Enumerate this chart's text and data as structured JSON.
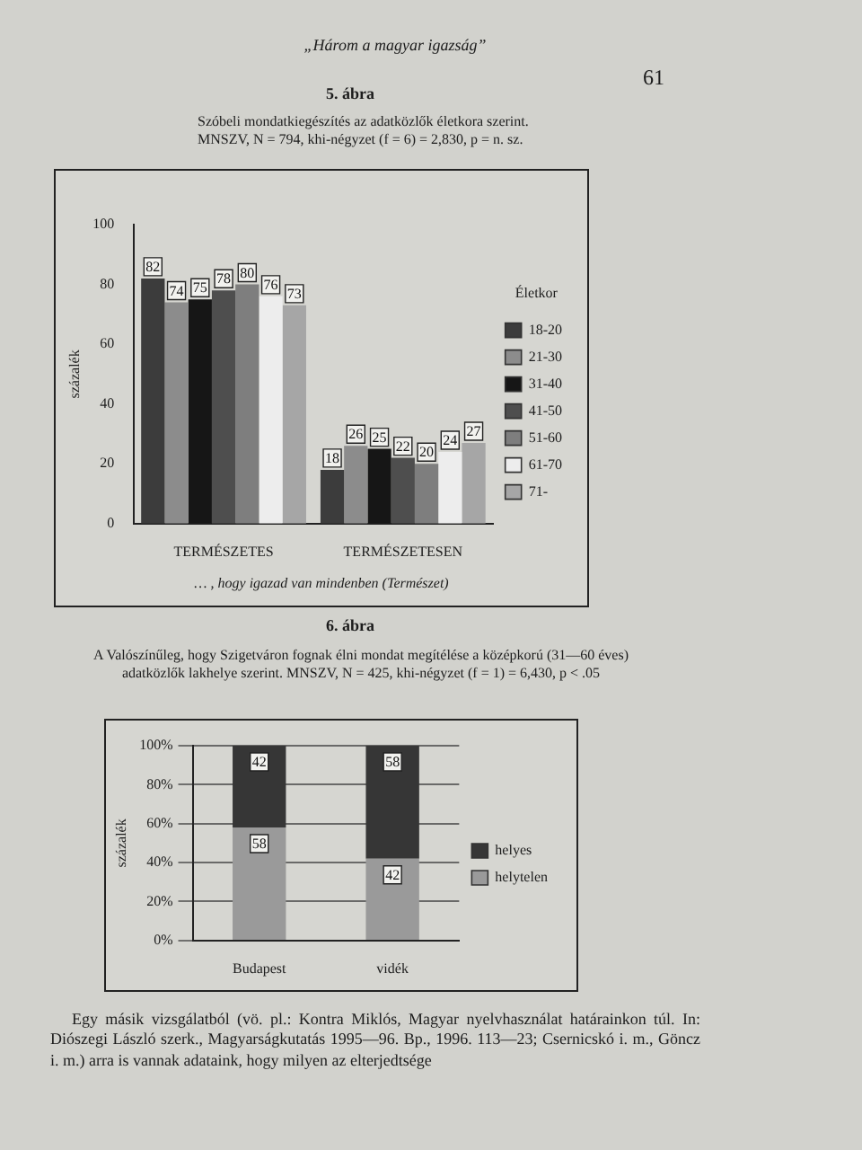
{
  "chart_data": [
    {
      "type": "bar",
      "title": "5. ábra",
      "subtitle": "Szóbeli mondatkiegészítés az adatközlők életkora szerint. MNSZV, N = 794, khi-négyzet (f = 6) = 2,830, p = n. sz.",
      "ylabel": "százalék",
      "legend_title": "Életkor",
      "categories": [
        "TERMÉSZETES",
        "TERMÉSZETESEN"
      ],
      "series": [
        {
          "name": "18-20",
          "color": "#3c3c3c",
          "values": [
            82,
            18
          ]
        },
        {
          "name": "21-30",
          "color": "#8c8c8c",
          "values": [
            74,
            26
          ]
        },
        {
          "name": "31-40",
          "color": "#161616",
          "values": [
            75,
            25
          ]
        },
        {
          "name": "41-50",
          "color": "#4e4e4e",
          "values": [
            78,
            22
          ]
        },
        {
          "name": "51-60",
          "color": "#7e7e7e",
          "values": [
            80,
            20
          ]
        },
        {
          "name": "61-70",
          "color": "#ededed",
          "values": [
            76,
            24
          ]
        },
        {
          "name": "71-",
          "color": "#a6a6a6",
          "values": [
            73,
            27
          ]
        }
      ],
      "ylim": [
        0,
        100
      ],
      "yticks": [
        0,
        20,
        40,
        60,
        80,
        100
      ],
      "grid": false,
      "legend": "right",
      "data_labels": true,
      "annotations": [
        "„Három a magyar igazság”",
        "61",
        "… , hogy igazad van mindenben (Természet)"
      ]
    },
    {
      "type": "bar",
      "stacked": true,
      "title": "6. ábra",
      "subtitle": "A Valószínűleg, hogy Szigetváron fognak élni mondat megítélése a középkorú (31—60 éves) adatközlők lakhelye szerint. MNSZV, N = 425, khi-négyzet (f = 1) = 6,430, p < .05",
      "ylabel": "százalék",
      "categories": [
        "Budapest",
        "vidék"
      ],
      "series": [
        {
          "name": "helytelen",
          "color": "#9a9a9a",
          "values": [
            58,
            42
          ]
        },
        {
          "name": "helyes",
          "color": "#363636",
          "values": [
            42,
            58
          ]
        }
      ],
      "ylim": [
        0,
        100
      ],
      "yticks": [
        {
          "value": 0,
          "label": "0%"
        },
        {
          "value": 20,
          "label": "20%"
        },
        {
          "value": 40,
          "label": "40%"
        },
        {
          "value": 60,
          "label": "60%"
        },
        {
          "value": 80,
          "label": "80%"
        },
        {
          "value": 100,
          "label": "100%"
        }
      ],
      "grid": "y",
      "legend": "right",
      "data_labels": true,
      "annotations": [
        "Egy másik vizsgálatból (vö. pl.: Kontra Miklós, Magyar nyelvhasználat határainkon túl. In: Diószegi László szerk., Magyarságkutatás 1995—96. Bp., 1996. 113—23; Csernicskó i. m., Göncz i. m.) arra is vannak adataink, hogy milyen az elterjedtsége"
      ]
    }
  ]
}
